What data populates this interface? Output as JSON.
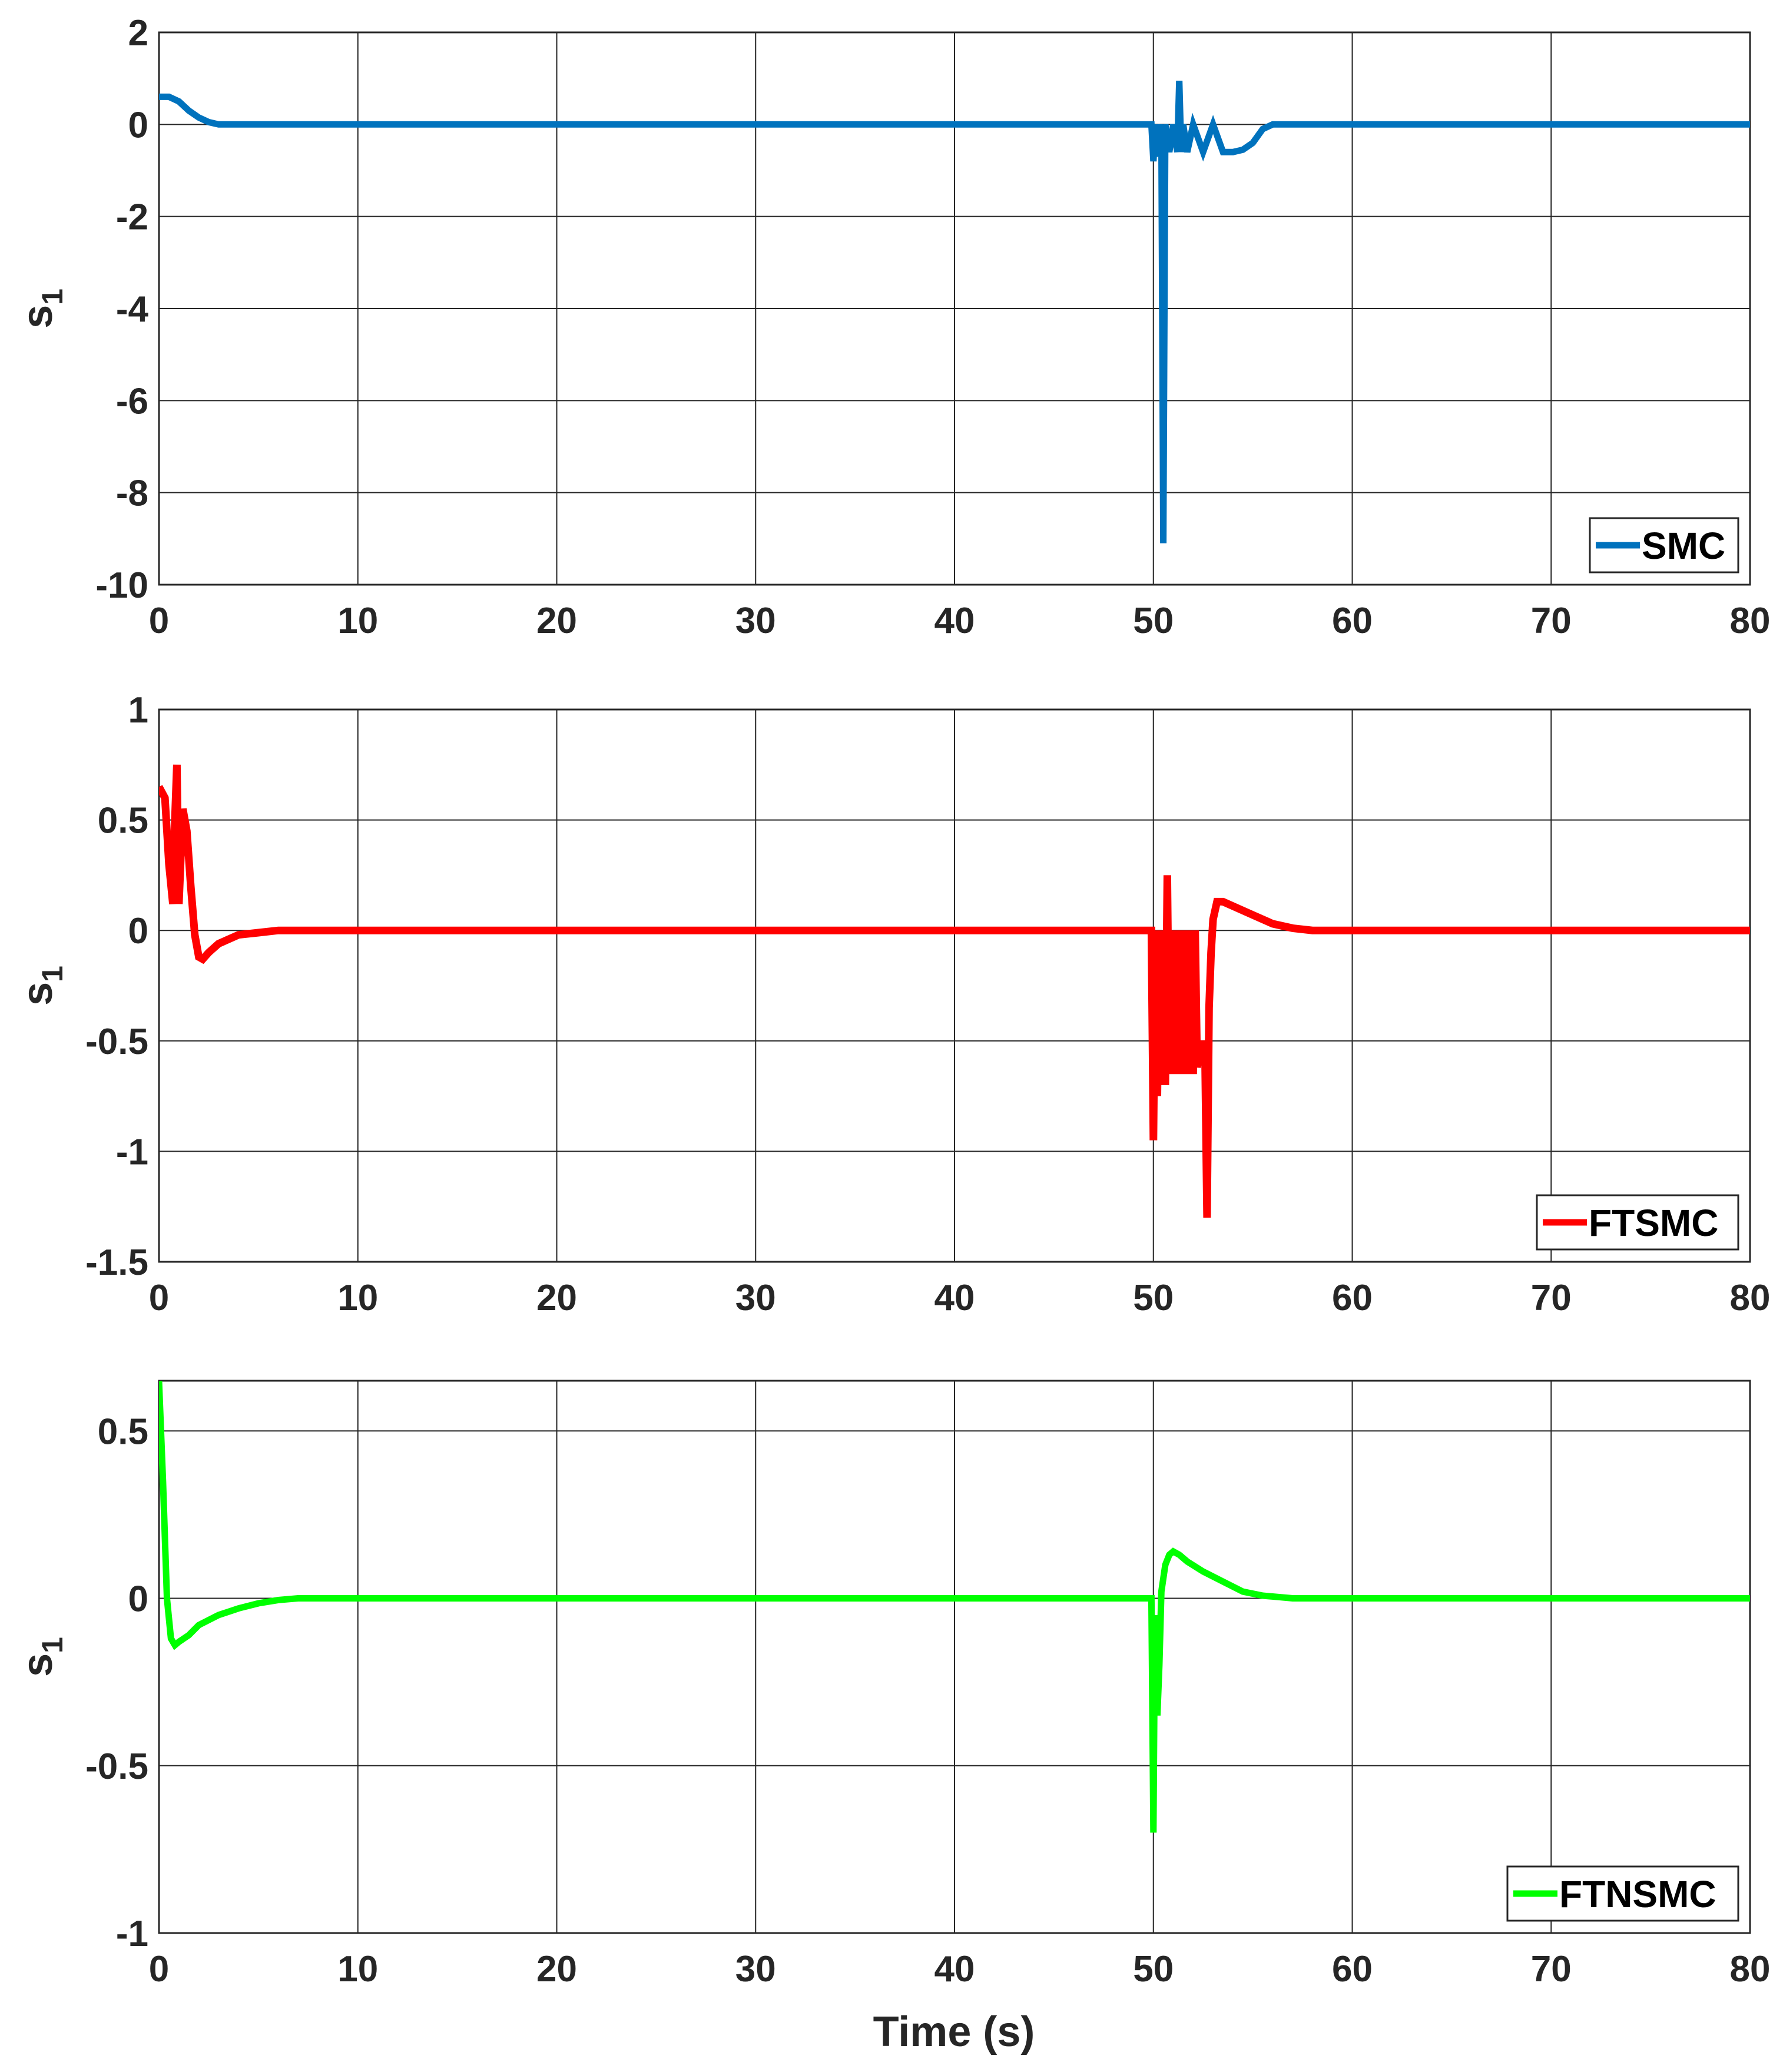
{
  "figure": {
    "xlabel": "Time (s)"
  },
  "chart_data": [
    {
      "type": "line",
      "ylabel": {
        "main": "s",
        "sub": "1"
      },
      "xlim": [
        0,
        80
      ],
      "ylim": [
        -10,
        2
      ],
      "x_ticks": [
        0,
        10,
        20,
        30,
        40,
        50,
        60,
        70,
        80
      ],
      "y_ticks": [
        2,
        0,
        -2,
        -4,
        -6,
        -8,
        -10
      ],
      "grid": true,
      "legend_position": "bottom-right",
      "series": [
        {
          "name": "SMC",
          "color": "#0072BD",
          "x": [
            0,
            0.5,
            1,
            1.5,
            2,
            2.5,
            3,
            5,
            10,
            20,
            30,
            40,
            49.9,
            50.0,
            50.1,
            50.2,
            50.4,
            50.5,
            50.6,
            50.8,
            51.0,
            51.2,
            51.3,
            51.4,
            51.5,
            51.7,
            52.0,
            52.5,
            53.0,
            53.5,
            54.0,
            54.5,
            55.0,
            55.5,
            56,
            60,
            70,
            80
          ],
          "y": [
            0.6,
            0.6,
            0.5,
            0.3,
            0.15,
            0.05,
            0.0,
            0.0,
            0.0,
            0.0,
            0.0,
            0.0,
            0.0,
            -0.8,
            0.0,
            -0.7,
            0.0,
            -9.1,
            0.0,
            -0.6,
            0.0,
            -0.6,
            0.95,
            -0.6,
            0.0,
            -0.6,
            0.0,
            -0.6,
            0.0,
            -0.6,
            -0.6,
            -0.55,
            -0.4,
            -0.1,
            0.0,
            0.0,
            0.0,
            0.0
          ]
        }
      ]
    },
    {
      "type": "line",
      "ylabel": {
        "main": "s",
        "sub": "1"
      },
      "xlim": [
        0,
        80
      ],
      "ylim": [
        -1.5,
        1
      ],
      "x_ticks": [
        0,
        10,
        20,
        30,
        40,
        50,
        60,
        70,
        80
      ],
      "y_ticks": [
        1,
        0.5,
        0,
        -0.5,
        -1,
        -1.5
      ],
      "grid": true,
      "legend_position": "bottom-right",
      "series": [
        {
          "name": "FTSMC",
          "color": "#FF0000",
          "x": [
            0,
            0.3,
            0.5,
            0.7,
            0.8,
            0.9,
            1.0,
            1.2,
            1.4,
            1.6,
            1.8,
            2.0,
            2.2,
            2.5,
            3,
            4,
            5,
            6,
            7,
            10,
            20,
            30,
            40,
            49.9,
            50.0,
            50.1,
            50.2,
            50.3,
            50.4,
            50.5,
            50.6,
            50.7,
            50.8,
            50.9,
            51.0,
            51.1,
            51.2,
            51.3,
            51.4,
            51.5,
            51.6,
            51.7,
            51.8,
            51.9,
            52.0,
            52.1,
            52.2,
            52.4,
            52.6,
            52.7,
            52.8,
            52.9,
            53.0,
            53.2,
            53.5,
            54.0,
            55,
            56,
            57,
            58,
            60,
            70,
            80
          ],
          "y": [
            0.65,
            0.6,
            0.3,
            0.12,
            0.5,
            0.75,
            0.12,
            0.55,
            0.45,
            0.2,
            -0.02,
            -0.12,
            -0.13,
            -0.1,
            -0.06,
            -0.02,
            -0.01,
            0.0,
            0.0,
            0.0,
            0.0,
            0.0,
            0.0,
            0.0,
            -0.95,
            0.0,
            -0.75,
            0.0,
            -0.7,
            0.0,
            -0.7,
            0.25,
            -0.65,
            0.0,
            -0.65,
            0.0,
            -0.65,
            0.0,
            -0.65,
            0.0,
            -0.65,
            0.0,
            -0.65,
            0.0,
            -0.65,
            0.0,
            -0.62,
            -0.5,
            -0.6,
            -1.3,
            -0.35,
            -0.1,
            0.05,
            0.13,
            0.13,
            0.11,
            0.07,
            0.03,
            0.01,
            0.0,
            0.0,
            0.0,
            0.0
          ]
        }
      ]
    },
    {
      "type": "line",
      "ylabel": {
        "main": "s",
        "sub": "1"
      },
      "xlim": [
        0,
        80
      ],
      "ylim": [
        -1,
        0.65
      ],
      "x_ticks": [
        0,
        10,
        20,
        30,
        40,
        50,
        60,
        70,
        80
      ],
      "y_ticks": [
        0.5,
        0,
        -0.5,
        -1
      ],
      "grid": true,
      "legend_position": "bottom-right",
      "series": [
        {
          "name": "FTNSMC",
          "color": "#00FF00",
          "x": [
            0,
            0.2,
            0.4,
            0.6,
            0.8,
            1.0,
            1.5,
            2,
            3,
            4,
            5,
            6,
            7,
            8,
            10,
            20,
            30,
            40,
            49.9,
            50.0,
            50.05,
            50.1,
            50.2,
            50.3,
            50.4,
            50.6,
            50.8,
            51.0,
            51.3,
            51.7,
            52.5,
            53.5,
            54.5,
            55.5,
            57,
            60,
            70,
            80
          ],
          "y": [
            0.65,
            0.35,
            0.0,
            -0.12,
            -0.14,
            -0.13,
            -0.11,
            -0.08,
            -0.05,
            -0.03,
            -0.015,
            -0.005,
            0.0,
            0.0,
            0.0,
            0.0,
            0.0,
            0.0,
            0.0,
            -0.7,
            -0.3,
            -0.05,
            -0.35,
            -0.2,
            0.02,
            0.1,
            0.13,
            0.14,
            0.13,
            0.11,
            0.08,
            0.05,
            0.02,
            0.008,
            0.0,
            0.0,
            0.0,
            0.0
          ]
        }
      ]
    }
  ]
}
